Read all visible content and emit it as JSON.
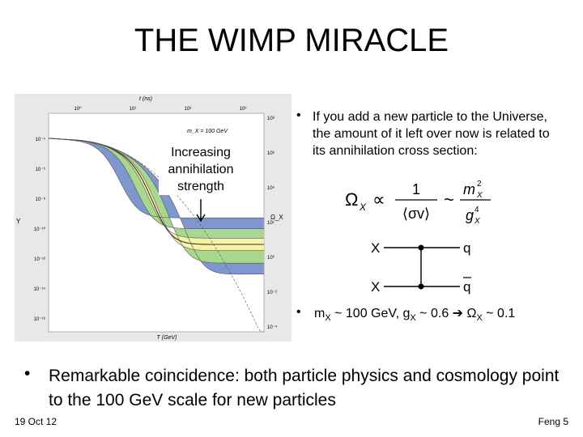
{
  "slide": {
    "title": "THE WIMP MIRACLE",
    "footer_left": "19 Oct 12",
    "footer_right": "Feng 5"
  },
  "annotation": "Increasing annihilation strength",
  "bullets": {
    "marker": "•",
    "b1": "If you add a new particle to the Universe, the amount of it left over now is related to its annihilation cross section:",
    "b2_lead": "m",
    "b2_sub1": "X",
    "b2_mid": " ~ 100 GeV, g",
    "b2_sub2": "X",
    "b2_mid2": " ~ 0.6 ",
    "b2_arrow": "➔",
    "b2_omega": " Ω",
    "b2_sub3": "X",
    "b2_tail": " ~ 0.1",
    "main": "Remarkable coincidence: both particle physics and cosmology point to the 100 GeV scale for new particles"
  },
  "formula": {
    "lhs": "Ω",
    "lhs_sub": "X",
    "prop": "∝",
    "num": "1",
    "den": "⟨σv⟩",
    "sim": "~",
    "num2": "m",
    "num2_sub": "X",
    "num2_sup": "2",
    "den2": "g",
    "den2_sub": "X",
    "den2_sup": "4"
  },
  "feynman": {
    "in_top": "X",
    "in_bottom": "X",
    "out_top": "q",
    "out_bottom": "q"
  },
  "chart_data": {
    "type": "line",
    "title": "",
    "top_axis_label": "t (ns)",
    "top_ticks": [
      "10⁰",
      "10¹",
      "10²",
      "10³"
    ],
    "bottom_axis_label": "T (GeV)",
    "left_axis_label": "Y",
    "left_ticks": [
      "10⁻⁴",
      "10⁻⁶",
      "10⁻⁸",
      "10⁻¹⁰",
      "10⁻¹²",
      "10⁻¹⁴",
      "10⁻¹⁶"
    ],
    "right_axis_label": "Ω_X",
    "right_ticks": [
      "10⁸",
      "10⁶",
      "10⁴",
      "10²",
      "10⁰",
      "10⁻²",
      "10⁻⁴"
    ],
    "legend": "m_X = 100 GeV",
    "log_y_range": [
      -17,
      -3
    ],
    "log_x_range": [
      0,
      1
    ],
    "curves": [
      {
        "name": "equilibrium",
        "style": "dashed",
        "freeze_x": 1.0,
        "freeze_y": -16.5
      },
      {
        "name": "band-blue-top",
        "freeze_x": 0.34,
        "freeze_y": -9.7
      },
      {
        "name": "band-green-top",
        "freeze_x": 0.42,
        "freeze_y": -10.4
      },
      {
        "name": "band-yellow-top",
        "freeze_x": 0.48,
        "freeze_y": -11.0
      },
      {
        "name": "central",
        "freeze_x": 0.5,
        "freeze_y": -11.4
      },
      {
        "name": "band-yellow-bottom",
        "freeze_x": 0.52,
        "freeze_y": -11.8
      },
      {
        "name": "band-green-bottom",
        "freeze_x": 0.58,
        "freeze_y": -12.6
      },
      {
        "name": "band-blue-bottom",
        "freeze_x": 0.66,
        "freeze_y": -13.3
      }
    ],
    "colors": {
      "panel": "#e8e8e8",
      "plot_bg": "#ffffff",
      "blue": "#7f96cf",
      "green": "#a8d88f",
      "yellow": "#f7f3a6",
      "line": "#555555"
    }
  }
}
